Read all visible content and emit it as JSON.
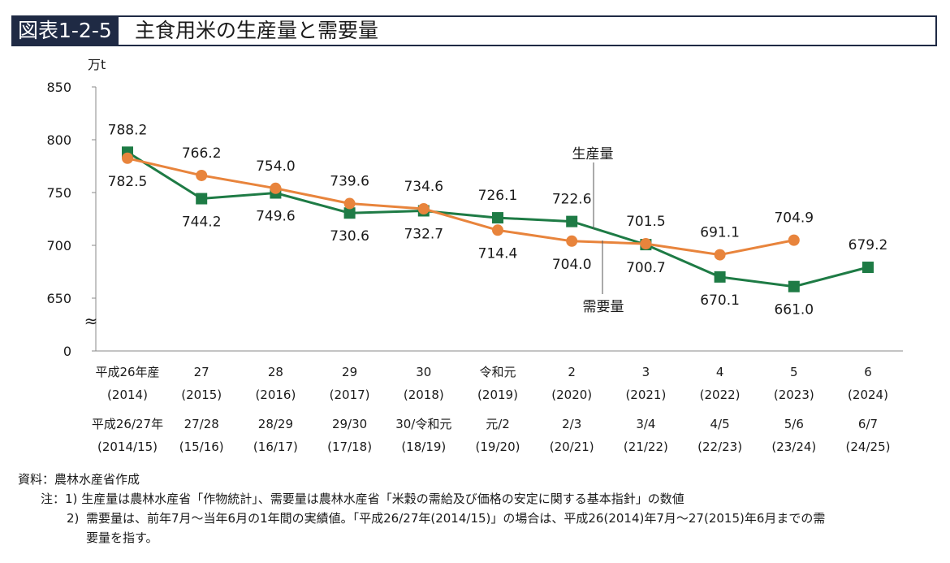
{
  "header": {
    "label": "図表1-2-5",
    "title": "主食用米の生産量と需要量"
  },
  "chart_data": {
    "type": "line",
    "unit": "万t",
    "ylim": [
      0,
      850
    ],
    "y_ticks": [
      0,
      650,
      700,
      750,
      800,
      850
    ],
    "axis_break_symbol": "≈",
    "grid": false,
    "categories_year": [
      "平成26年産",
      "27",
      "28",
      "29",
      "30",
      "令和元",
      "2",
      "3",
      "4",
      "5",
      "6"
    ],
    "categories_year_ad": [
      "(2014)",
      "(2015)",
      "(2016)",
      "(2017)",
      "(2018)",
      "(2019)",
      "(2020)",
      "(2021)",
      "(2022)",
      "(2023)",
      "(2024)"
    ],
    "categories_period": [
      "平成26/27年",
      "27/28",
      "28/29",
      "29/30",
      "30/令和元",
      "元/2",
      "2/3",
      "3/4",
      "4/5",
      "5/6",
      "6/7"
    ],
    "categories_period_ad": [
      "(2014/15)",
      "(15/16)",
      "(16/17)",
      "(17/18)",
      "(18/19)",
      "(19/20)",
      "(20/21)",
      "(21/22)",
      "(22/23)",
      "(23/24)",
      "(24/25)"
    ],
    "series": [
      {
        "name": "生産量",
        "color": "#1e7b45",
        "marker": "square",
        "values": [
          788.2,
          744.2,
          749.6,
          730.6,
          732.7,
          726.1,
          722.6,
          700.7,
          670.1,
          661.0,
          679.2
        ],
        "labels": [
          "788.2",
          "744.2",
          "749.6",
          "730.6",
          "732.7",
          "726.1",
          "722.6",
          "700.7",
          "670.1",
          "661.0",
          "679.2"
        ]
      },
      {
        "name": "需要量",
        "color": "#e8843c",
        "marker": "circle",
        "values": [
          782.5,
          766.2,
          754.0,
          739.6,
          734.6,
          714.4,
          704.0,
          701.5,
          691.1,
          704.9,
          null
        ],
        "labels": [
          "782.5",
          "766.2",
          "754.0",
          "739.6",
          "734.6",
          "714.4",
          "704.0",
          "701.5",
          "691.1",
          "704.9",
          null
        ]
      }
    ]
  },
  "notes": {
    "source": "資料：農林水産省作成",
    "note1_prefix": "注：1)",
    "note1": "生産量は農林水産省「作物統計」、需要量は農林水産省「米穀の需給及び価格の安定に関する基本指針」の数値",
    "note2_num": "2)",
    "note2": "需要量は、前年7月～当年6月の1年間の実績値。「平成26/27年(2014/15)」の場合は、平成26(2014)年7月～27(2015)年6月までの需",
    "note2_cont": "要量を指す。"
  }
}
